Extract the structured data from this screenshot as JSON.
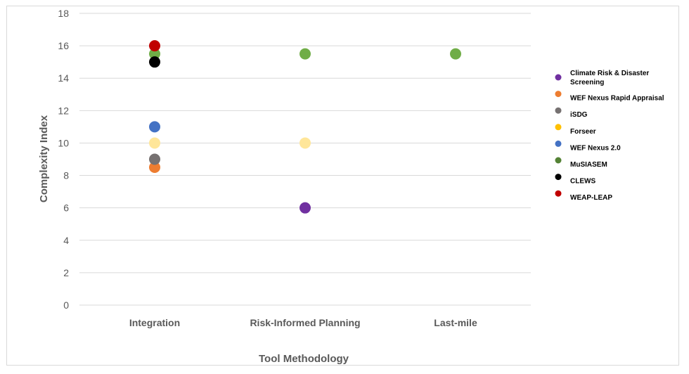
{
  "chart_data": {
    "type": "scatter",
    "title": "",
    "xlabel": "Tool Methodology",
    "ylabel": "Complexity Index",
    "categories": [
      "Integration",
      "Risk-Informed Planning",
      "Last-mile"
    ],
    "ylim": [
      0,
      18
    ],
    "yticks": [
      0,
      2,
      4,
      6,
      8,
      10,
      12,
      14,
      16,
      18
    ],
    "grid": true,
    "legend_position": "right",
    "series": [
      {
        "name": "Climate Risk & Disaster Screening",
        "color": "#7030a0",
        "points": [
          {
            "category": "Risk-Informed Planning",
            "y": 6
          }
        ]
      },
      {
        "name": "WEF Nexus Rapid Appraisal",
        "color": "#ed7d31",
        "points": [
          {
            "category": "Integration",
            "y": 8.5
          }
        ]
      },
      {
        "name": "iSDG",
        "color": "#767171",
        "points": [
          {
            "category": "Integration",
            "y": 9
          }
        ]
      },
      {
        "name": "Forseer",
        "color": "#ffe699",
        "legend_color": "#ffc000",
        "points": [
          {
            "category": "Integration",
            "y": 10
          },
          {
            "category": "Risk-Informed Planning",
            "y": 10
          }
        ]
      },
      {
        "name": "WEF Nexus 2.0",
        "color": "#4472c4",
        "points": [
          {
            "category": "Integration",
            "y": 11
          }
        ]
      },
      {
        "name": "MuSIASEM",
        "color": "#70ad47",
        "legend_color": "#548235",
        "points": [
          {
            "category": "Integration",
            "y": 15.5
          },
          {
            "category": "Risk-Informed Planning",
            "y": 15.5
          },
          {
            "category": "Last-mile",
            "y": 15.5
          }
        ]
      },
      {
        "name": "CLEWS",
        "color": "#000000",
        "points": [
          {
            "category": "Integration",
            "y": 15
          }
        ]
      },
      {
        "name": "WEAP-LEAP",
        "color": "#c00000",
        "points": [
          {
            "category": "Integration",
            "y": 16
          }
        ]
      }
    ]
  }
}
